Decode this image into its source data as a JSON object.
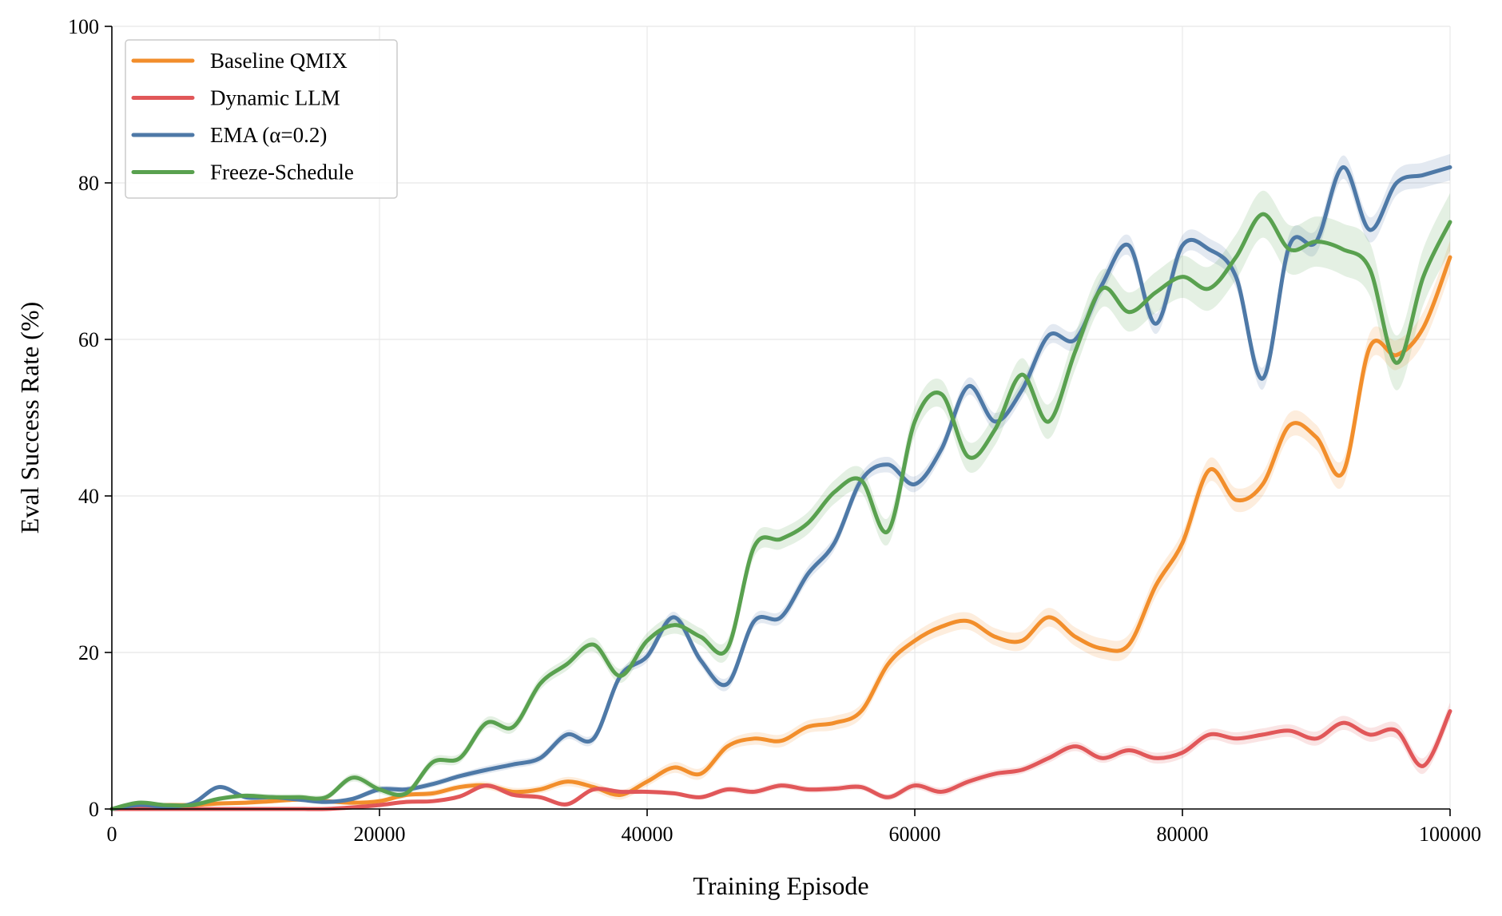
{
  "chart_data": {
    "type": "line",
    "title": "",
    "xlabel": "Training Episode",
    "ylabel": "Eval Success Rate (%)",
    "xlim": [
      0,
      100000
    ],
    "ylim": [
      0,
      100
    ],
    "xticks": [
      0,
      20000,
      40000,
      60000,
      80000,
      100000
    ],
    "yticks": [
      0,
      20,
      40,
      60,
      80,
      100
    ],
    "grid": true,
    "legend": "top-left",
    "x": [
      0,
      2000,
      4000,
      6000,
      8000,
      10000,
      12000,
      14000,
      16000,
      18000,
      20000,
      22000,
      24000,
      26000,
      28000,
      30000,
      32000,
      34000,
      36000,
      38000,
      40000,
      42000,
      44000,
      46000,
      48000,
      50000,
      52000,
      54000,
      56000,
      58000,
      60000,
      62000,
      64000,
      66000,
      68000,
      70000,
      72000,
      74000,
      76000,
      78000,
      80000,
      82000,
      84000,
      86000,
      88000,
      90000,
      92000,
      94000,
      96000,
      98000,
      100000
    ],
    "series": [
      {
        "name": "Baseline QMIX",
        "color": "#f28e2b",
        "values": [
          0,
          0.3,
          0.5,
          0.5,
          0.7,
          0.8,
          1.0,
          1.2,
          1.0,
          0.8,
          1.0,
          1.8,
          2.0,
          2.8,
          3.0,
          2.2,
          2.5,
          3.5,
          2.8,
          1.8,
          3.5,
          5.3,
          4.5,
          8.0,
          9.0,
          8.7,
          10.5,
          11.0,
          12.5,
          18.5,
          21.5,
          23.3,
          24.0,
          22.0,
          21.5,
          24.5,
          22.0,
          20.5,
          21.0,
          28.5,
          34.0,
          43.3,
          39.5,
          41.5,
          49.0,
          47.5,
          43.0,
          59.0,
          58.0,
          61.5,
          70.5
        ],
        "band": [
          0,
          0.3,
          0.3,
          0.3,
          0.3,
          0.3,
          0.3,
          0.3,
          0.3,
          0.3,
          0.3,
          0.3,
          0.4,
          0.4,
          0.5,
          0.5,
          0.5,
          0.6,
          0.6,
          0.6,
          0.6,
          0.7,
          0.7,
          0.7,
          0.8,
          0.8,
          0.8,
          0.9,
          0.9,
          1.0,
          1.0,
          1.1,
          1.1,
          1.1,
          1.2,
          1.2,
          1.2,
          1.3,
          1.3,
          1.4,
          1.4,
          1.5,
          1.5,
          1.5,
          1.6,
          1.6,
          1.7,
          1.8,
          1.9,
          2.0,
          2.1
        ]
      },
      {
        "name": "Dynamic LLM",
        "color": "#e15759",
        "values": [
          0,
          0,
          0,
          0,
          0,
          0,
          0,
          0,
          0,
          0.2,
          0.5,
          0.9,
          1.0,
          1.6,
          3.0,
          1.8,
          1.5,
          0.6,
          2.5,
          2.2,
          2.2,
          2.0,
          1.5,
          2.5,
          2.2,
          3.0,
          2.5,
          2.6,
          2.8,
          1.5,
          3.0,
          2.2,
          3.5,
          4.5,
          5.0,
          6.5,
          8.0,
          6.5,
          7.5,
          6.5,
          7.2,
          9.5,
          9.0,
          9.5,
          10.0,
          9.0,
          11.0,
          9.5,
          10.0,
          5.5,
          12.5
        ],
        "band": [
          0,
          0.1,
          0.1,
          0.1,
          0.1,
          0.1,
          0.1,
          0.1,
          0.1,
          0.1,
          0.2,
          0.2,
          0.2,
          0.2,
          0.3,
          0.3,
          0.3,
          0.3,
          0.3,
          0.3,
          0.3,
          0.3,
          0.3,
          0.4,
          0.4,
          0.4,
          0.4,
          0.4,
          0.4,
          0.4,
          0.5,
          0.5,
          0.5,
          0.5,
          0.5,
          0.6,
          0.6,
          0.6,
          0.6,
          0.7,
          0.7,
          0.7,
          0.8,
          0.8,
          0.8,
          0.9,
          0.9,
          0.9,
          1.0,
          1.0,
          1.1
        ]
      },
      {
        "name": "EMA (α=0.2)",
        "color": "#4e79a7",
        "values": [
          0,
          0.5,
          0.3,
          0.7,
          2.8,
          1.5,
          1.5,
          1.2,
          0.9,
          1.3,
          2.5,
          2.5,
          3.2,
          4.2,
          5.0,
          5.7,
          6.5,
          9.5,
          9.0,
          17.0,
          19.5,
          24.5,
          19.0,
          16.0,
          24.0,
          24.5,
          30.0,
          34.0,
          42.0,
          44.0,
          41.5,
          46.0,
          54.0,
          49.5,
          53.5,
          60.5,
          60.0,
          67.0,
          72.0,
          62.0,
          72.0,
          71.5,
          68.0,
          55.0,
          72.0,
          72.5,
          82.0,
          74.0,
          80.0,
          81.0,
          82.0
        ],
        "band": [
          0,
          0.2,
          0.2,
          0.2,
          0.3,
          0.3,
          0.3,
          0.3,
          0.3,
          0.3,
          0.4,
          0.4,
          0.4,
          0.4,
          0.5,
          0.5,
          0.5,
          0.6,
          0.6,
          0.6,
          0.7,
          0.7,
          0.7,
          0.8,
          0.8,
          0.8,
          0.9,
          0.9,
          0.9,
          1.0,
          1.0,
          1.0,
          1.1,
          1.1,
          1.1,
          1.2,
          1.2,
          1.2,
          1.3,
          1.3,
          1.3,
          1.4,
          1.4,
          1.4,
          1.5,
          1.5,
          1.5,
          1.6,
          1.6,
          1.6,
          1.7
        ]
      },
      {
        "name": "Freeze-Schedule",
        "color": "#59a14f",
        "values": [
          0,
          0.8,
          0.5,
          0.5,
          1.3,
          1.7,
          1.5,
          1.5,
          1.5,
          4.0,
          2.5,
          2.0,
          6.0,
          6.5,
          11.0,
          10.5,
          16.0,
          18.5,
          21.0,
          17.0,
          21.5,
          23.5,
          22.0,
          20.5,
          33.5,
          34.5,
          36.5,
          40.5,
          42.0,
          35.5,
          49.5,
          53.0,
          45.0,
          48.5,
          55.5,
          49.5,
          58.5,
          66.5,
          63.5,
          66.0,
          68.0,
          66.5,
          70.5,
          76.0,
          71.5,
          72.5,
          71.5,
          69.0,
          57.0,
          68.0,
          75.0
        ],
        "band": [
          0,
          0.2,
          0.2,
          0.3,
          0.3,
          0.3,
          0.4,
          0.4,
          0.4,
          0.5,
          0.5,
          0.5,
          0.6,
          0.6,
          0.7,
          0.7,
          0.8,
          0.8,
          0.9,
          0.9,
          1.0,
          1.1,
          1.1,
          1.2,
          1.3,
          1.3,
          1.4,
          1.5,
          1.6,
          1.7,
          1.8,
          1.8,
          1.9,
          2.0,
          2.1,
          2.2,
          2.3,
          2.4,
          2.5,
          2.6,
          2.7,
          2.8,
          2.9,
          3.0,
          3.1,
          3.2,
          3.3,
          3.4,
          3.5,
          3.6,
          3.7
        ]
      }
    ]
  }
}
